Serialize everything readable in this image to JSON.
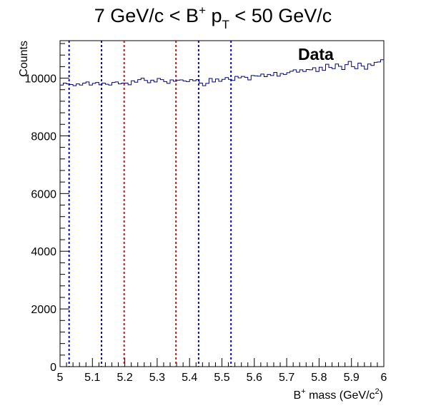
{
  "chart_data": {
    "type": "histogram",
    "title": {
      "part1": "7 GeV/c < B",
      "sup": "+",
      "part2": " p",
      "sub": "T",
      "part3": " < 50 GeV/c"
    },
    "xlabel": {
      "part1": "B",
      "sup1": "+",
      "part2": " mass (GeV/c",
      "sup2": "2",
      "part3": ")"
    },
    "ylabel": "Counts",
    "xlim": [
      5.0,
      6.0
    ],
    "ylim": [
      0,
      11300
    ],
    "x_ticks": [
      5.0,
      5.1,
      5.2,
      5.3,
      5.4,
      5.5,
      5.6,
      5.7,
      5.8,
      5.9,
      6.0
    ],
    "x_tick_labels": [
      "5",
      "5.1",
      "5.2",
      "5.3",
      "5.4",
      "5.5",
      "5.6",
      "5.7",
      "5.8",
      "5.9",
      "6"
    ],
    "y_ticks": [
      0,
      2000,
      4000,
      6000,
      8000,
      10000
    ],
    "y_tick_labels": [
      "0",
      "2000",
      "4000",
      "6000",
      "8000",
      "10000"
    ],
    "grid": false,
    "legend_text": "Data",
    "legend_placement": "top-right",
    "bins": {
      "start": 5.0,
      "width": 0.01,
      "values": [
        9760,
        9830,
        9800,
        9780,
        9740,
        9800,
        9760,
        9830,
        9870,
        9760,
        9820,
        9850,
        9770,
        9830,
        9790,
        9760,
        9850,
        9870,
        9800,
        9830,
        9830,
        9770,
        9910,
        9860,
        9950,
        10000,
        9920,
        9840,
        9930,
        9870,
        9990,
        9950,
        9880,
        9820,
        9940,
        9890,
        9930,
        9940,
        9900,
        9880,
        9950,
        9910,
        9950,
        9830,
        9740,
        9820,
        9990,
        9870,
        9970,
        9890,
        9960,
        10020,
        9960,
        9920,
        10060,
        10010,
        10060,
        10030,
        9940,
        10090,
        10080,
        10070,
        10140,
        10050,
        10130,
        10090,
        10200,
        10070,
        10160,
        10130,
        10190,
        10240,
        10290,
        10210,
        10290,
        10230,
        10300,
        10290,
        10360,
        10230,
        10380,
        10270,
        10480,
        10370,
        10330,
        10490,
        10410,
        10300,
        10470,
        10580,
        10400,
        10330,
        10520,
        10420,
        10310,
        10490,
        10440,
        10550,
        10560,
        10640
      ]
    },
    "series_color": "#000080",
    "vertical_lines": [
      {
        "x": 5.028,
        "color": "#0000ff"
      },
      {
        "x": 5.128,
        "color": "#0000ff"
      },
      {
        "x": 5.198,
        "color": "#ff0000"
      },
      {
        "x": 5.358,
        "color": "#ff0000"
      },
      {
        "x": 5.428,
        "color": "#0000ff"
      },
      {
        "x": 5.528,
        "color": "#0000ff"
      }
    ]
  }
}
